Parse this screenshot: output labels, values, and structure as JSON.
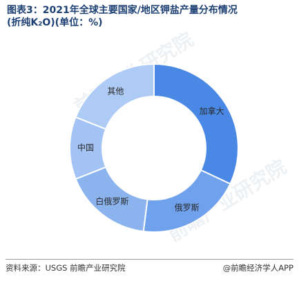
{
  "title_line1": "图表3：2021年全球主要国家/地区钾盐产量分布情况",
  "title_line2": "(折纯K₂O)(单位：%)",
  "chart_data": {
    "type": "pie",
    "donut": true,
    "categories": [
      "加拿大",
      "俄罗斯",
      "白俄罗斯",
      "中国",
      "其他"
    ],
    "values": [
      32,
      20,
      17,
      12,
      19
    ],
    "colors": [
      "#4a88e6",
      "#6fa1ec",
      "#8bb4ef",
      "#a2c3f3",
      "#adcbf5"
    ]
  },
  "watermark": "前瞻产业研究院",
  "footer": {
    "source": "资料来源：USGS 前瞻产业研究院",
    "credit": "@前瞻经济学人APP"
  }
}
